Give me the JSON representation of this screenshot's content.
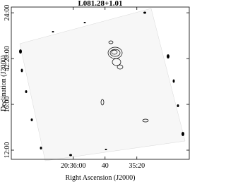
{
  "chart_data": {
    "type": "image",
    "title": "L081.28+1.01",
    "x_label": "Right Ascension (J2000)",
    "y_label": "Declination (J2000)",
    "xlim": [
      74199,
      74087
    ],
    "xticks": [
      {
        "value": 74160,
        "label": "20:36:00"
      },
      {
        "value": 74140,
        "label": "40"
      },
      {
        "value": 74120,
        "label": "35:20"
      }
    ],
    "ylim": [
      2531.2,
      2544.5
    ],
    "yticks": [
      {
        "value": 2532,
        "label": "12:00"
      },
      {
        "value": 2536,
        "label": "16:00"
      },
      {
        "value": 2540,
        "label": "42:20:00"
      },
      {
        "value": 2544,
        "label": "24:00"
      }
    ]
  }
}
